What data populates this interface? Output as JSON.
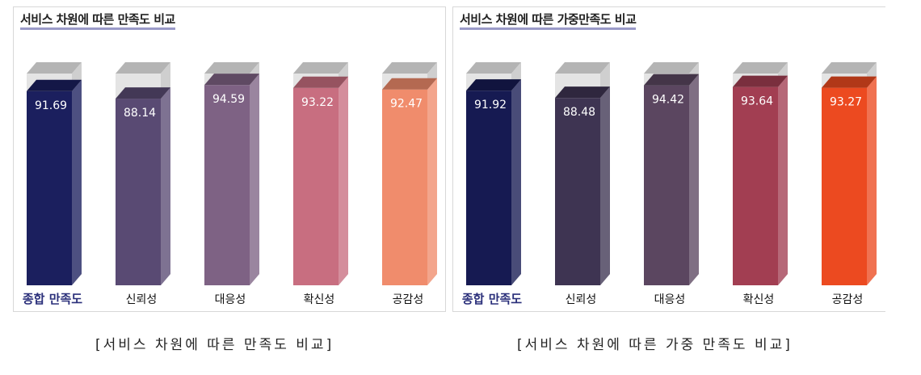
{
  "charts": [
    {
      "title": "서비스 차원에 따른 만족도 비교",
      "caption": "[서비스 차원에 따른 만족도 비교]"
    },
    {
      "title": "서비스 차원에 따른 가중만족도 비교",
      "caption": "[서비스 차원에 따른 가중 만족도 비교]"
    }
  ],
  "chart_data": [
    {
      "type": "bar",
      "title": "서비스 차원에 따른 만족도 비교",
      "categories": [
        "종합 만족도",
        "신뢰성",
        "대응성",
        "확신성",
        "공감성"
      ],
      "values": [
        91.69,
        88.14,
        94.59,
        93.22,
        92.47
      ],
      "value_labels": [
        "91.69",
        "88.14",
        "94.59",
        "93.22",
        "92.47"
      ],
      "colors": [
        "#1b1f5e",
        "#594a73",
        "#7e6284",
        "#c86e80",
        "#f08c6c"
      ],
      "ylim": [
        0,
        100
      ],
      "grid": false,
      "legend": "none"
    },
    {
      "type": "bar",
      "title": "서비스 차원에 따른 가중만족도 비교",
      "categories": [
        "종합 만족도",
        "신뢰성",
        "대응성",
        "확신성",
        "공감성"
      ],
      "values": [
        91.92,
        88.48,
        94.42,
        93.64,
        93.27
      ],
      "value_labels": [
        "91.92",
        "88.48",
        "94.42",
        "93.64",
        "93.27"
      ],
      "colors": [
        "#161a52",
        "#3e3452",
        "#5b4660",
        "#a23e52",
        "#ec4a20"
      ],
      "ylim": [
        0,
        100
      ],
      "grid": false,
      "legend": "none"
    }
  ]
}
